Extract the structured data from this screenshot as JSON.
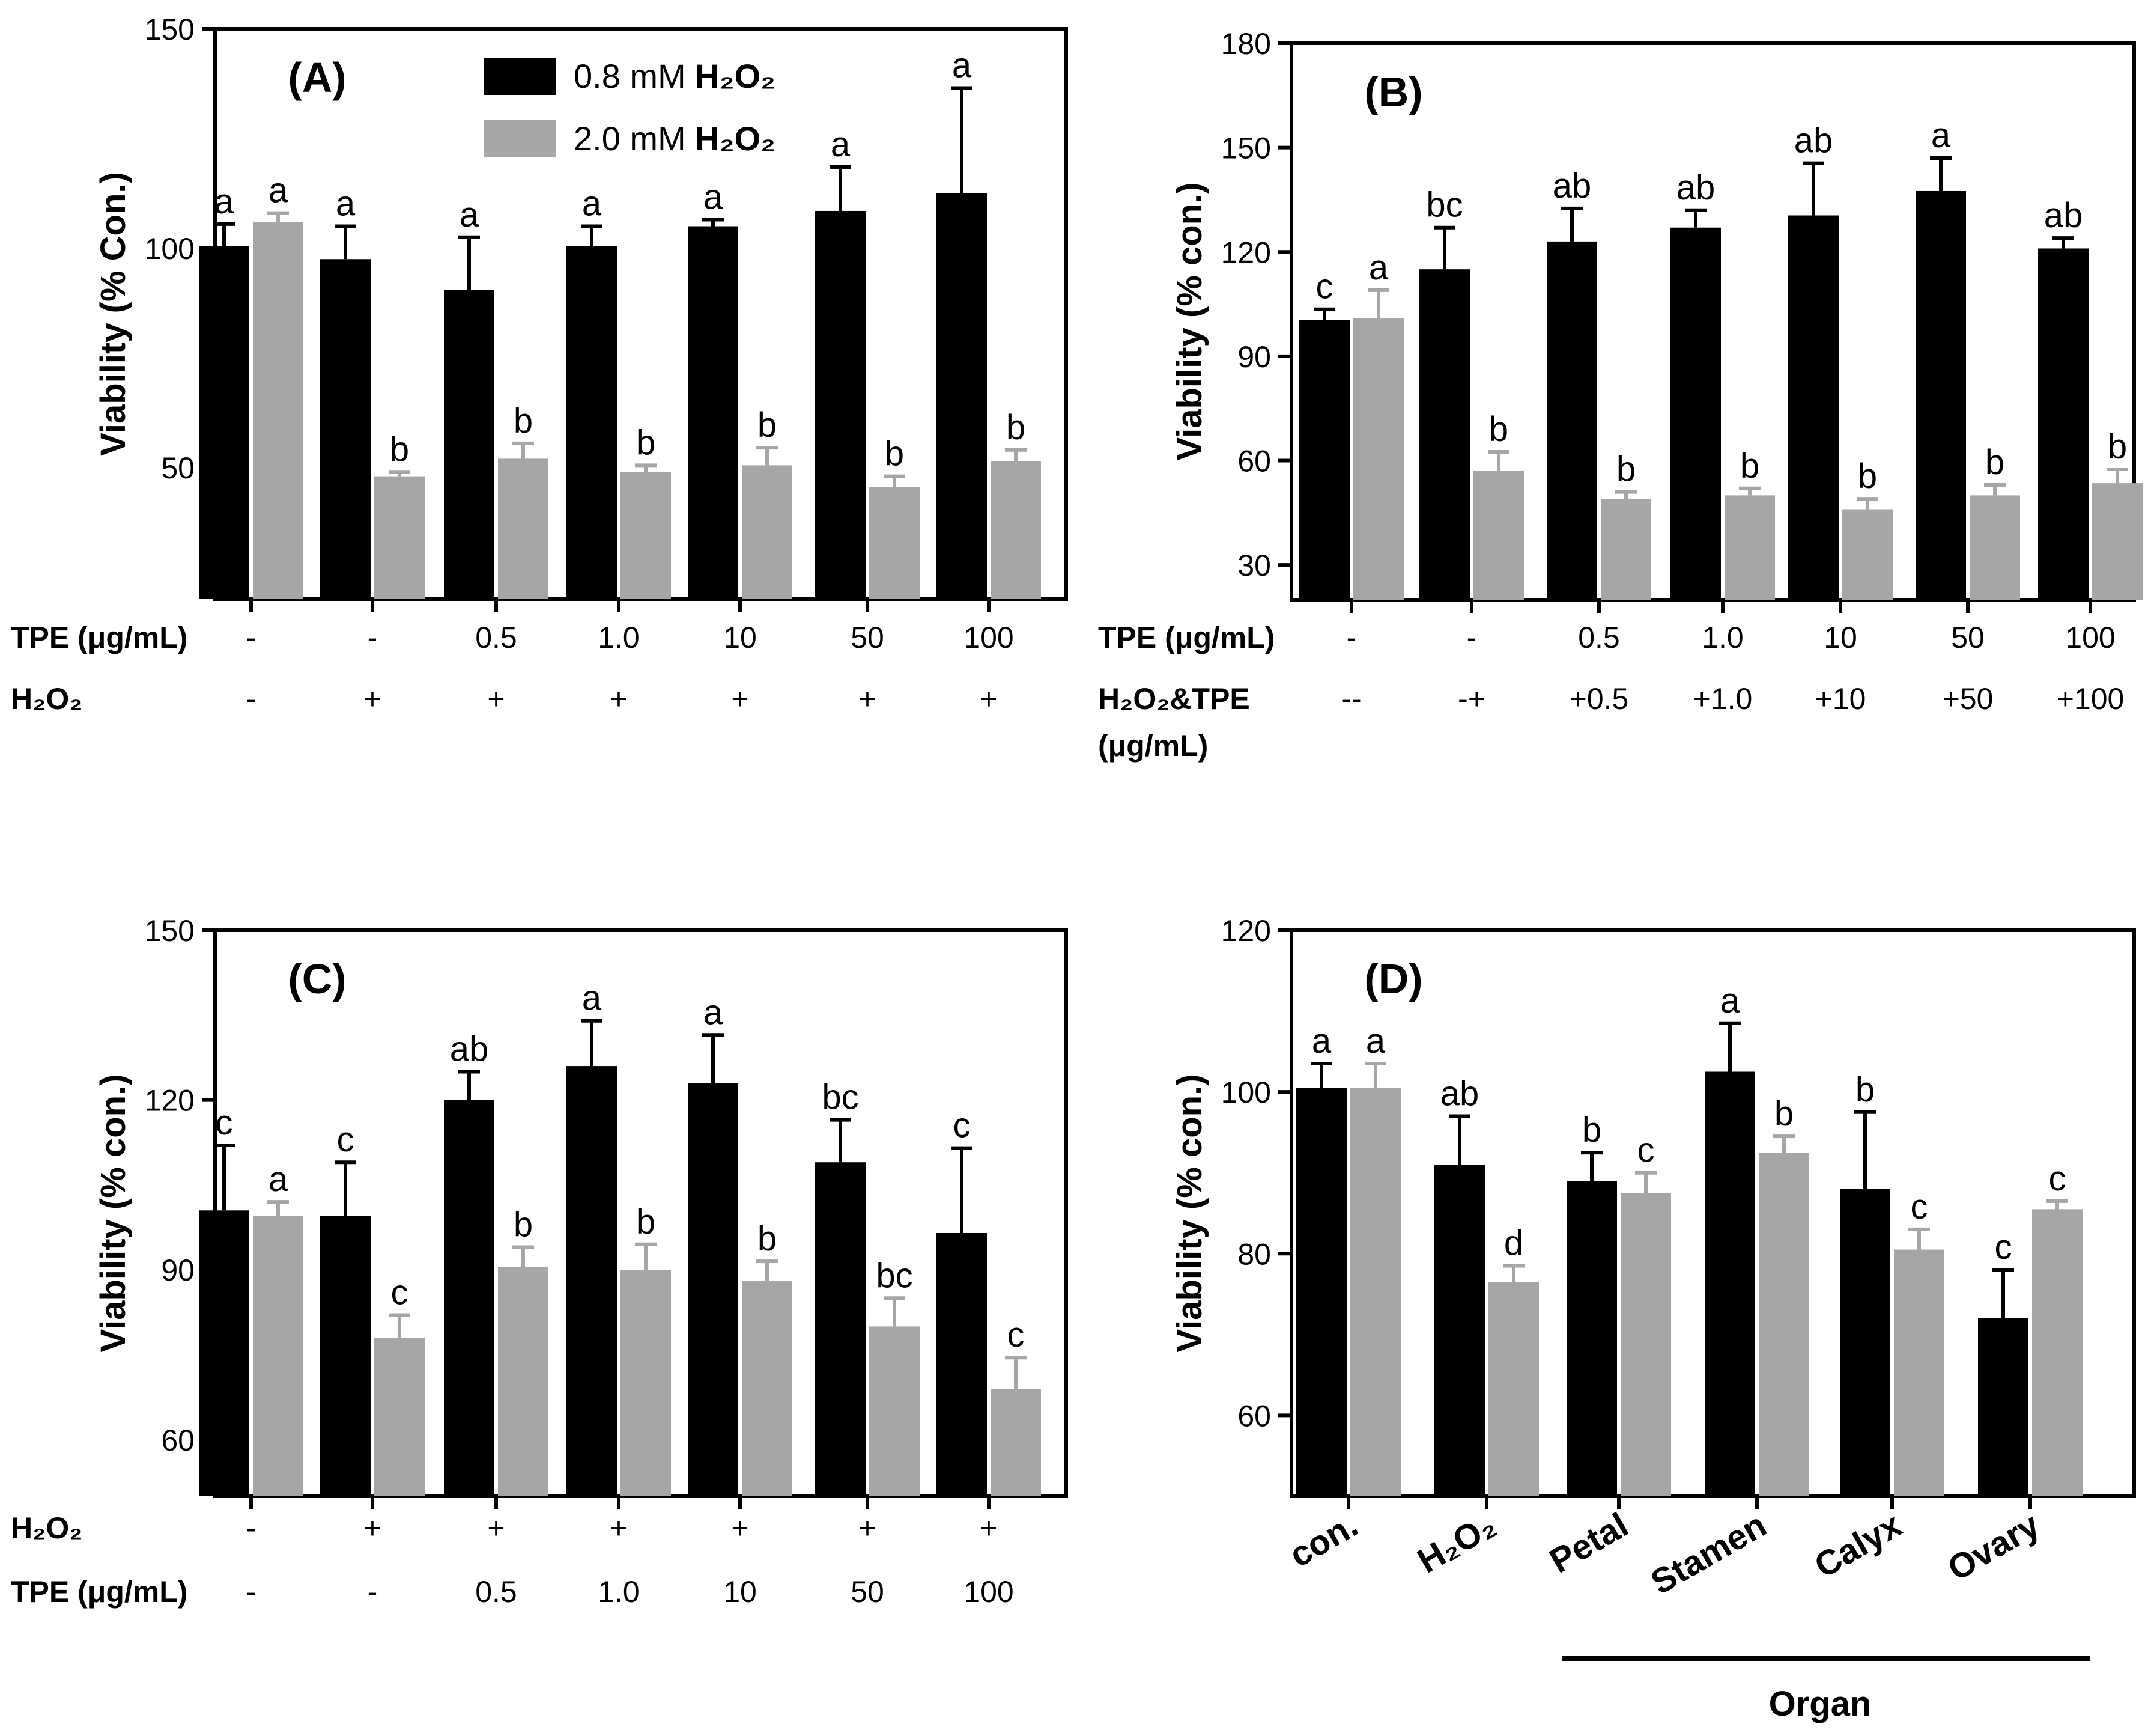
{
  "colors": {
    "series1": "#000000",
    "series2": "#a6a6a6",
    "axis": "#000000"
  },
  "chart_data": [
    {
      "type": "bar",
      "panel_label": "(A)",
      "ylabel": "Viability (% Con.)",
      "ylim": [
        20,
        150
      ],
      "yticks": [
        50,
        100,
        150
      ],
      "legend": [
        {
          "text": "0.8 mM ",
          "chem": "H₂O₂"
        },
        {
          "text": "2.0 mM ",
          "chem": "H₂O₂"
        }
      ],
      "series": [
        {
          "name": "0.8 mM H2O2",
          "values": [
            100.5,
            97.5,
            90.5,
            100.5,
            105,
            108.5,
            112.5
          ],
          "errors": [
            5,
            7.5,
            12,
            4.5,
            1.5,
            10,
            24
          ],
          "letters": [
            "a",
            "a",
            "a",
            "a",
            "a",
            "a",
            "a"
          ]
        },
        {
          "name": "2.0 mM H2O2",
          "values": [
            106,
            48,
            52,
            49,
            50.5,
            45.5,
            51.5
          ],
          "errors": [
            2,
            1,
            3.5,
            1.5,
            4,
            2.5,
            2.5
          ],
          "letters": [
            "a",
            "b",
            "b",
            "b",
            "b",
            "b",
            "b"
          ]
        }
      ],
      "row_labels": [
        "TPE (μg/mL)",
        "H₂O₂"
      ],
      "rows": [
        [
          "-",
          "-",
          "0.5",
          "1.0",
          "10",
          "50",
          "100"
        ],
        [
          "-",
          "+",
          "+",
          "+",
          "+",
          "+",
          "+"
        ]
      ]
    },
    {
      "type": "bar",
      "panel_label": "(B)",
      "ylabel": "Viability (% con.)",
      "ylim": [
        20,
        180
      ],
      "yticks": [
        30,
        60,
        90,
        120,
        150,
        180
      ],
      "series": [
        {
          "name": "series 1",
          "values": [
            100.5,
            115,
            123,
            127,
            130.5,
            137.5,
            121
          ],
          "errors": [
            3,
            12,
            9.5,
            5,
            15,
            9.5,
            3
          ],
          "letters": [
            "c",
            "bc",
            "ab",
            "ab",
            "ab",
            "a",
            "ab"
          ]
        },
        {
          "name": "series 2",
          "values": [
            101,
            57,
            49,
            50,
            46,
            50,
            53.5
          ],
          "errors": [
            8,
            5.5,
            2,
            2,
            3,
            3,
            4
          ],
          "letters": [
            "a",
            "b",
            "b",
            "b",
            "b",
            "b",
            "b"
          ]
        }
      ],
      "row_labels": [
        "TPE (μg/mL)",
        "H₂O₂&TPE",
        "(μg/mL)"
      ],
      "rows": [
        [
          "-",
          "-",
          "0.5",
          "1.0",
          "10",
          "50",
          "100"
        ],
        [
          "--",
          "-+",
          "+0.5",
          "+1.0",
          "+10",
          "+50",
          "+100"
        ]
      ]
    },
    {
      "type": "bar",
      "panel_label": "(C)",
      "ylabel": "Viability (% con.)",
      "ylim": [
        50,
        150
      ],
      "yticks": [
        60,
        90,
        120,
        150
      ],
      "series": [
        {
          "name": "series 1",
          "values": [
            100.5,
            99.5,
            120,
            126,
            123,
            109,
            96.5
          ],
          "errors": [
            11.5,
            9.5,
            5,
            8,
            8.5,
            7.5,
            15
          ],
          "letters": [
            "c",
            "c",
            "ab",
            "a",
            "a",
            "bc",
            "c"
          ]
        },
        {
          "name": "series 2",
          "values": [
            99.5,
            78,
            90.5,
            90,
            88,
            80,
            69
          ],
          "errors": [
            2.5,
            4,
            3.5,
            4.5,
            3.5,
            5,
            5.5
          ],
          "letters": [
            "a",
            "c",
            "b",
            "b",
            "b",
            "bc",
            "c"
          ]
        }
      ],
      "row_labels": [
        "H₂O₂",
        "TPE (μg/mL)"
      ],
      "rows": [
        [
          "-",
          "+",
          "+",
          "+",
          "+",
          "+",
          "+"
        ],
        [
          "-",
          "-",
          "0.5",
          "1.0",
          "10",
          "50",
          "100"
        ]
      ]
    },
    {
      "type": "bar",
      "panel_label": "(D)",
      "ylabel": "Viability (% con.)",
      "ylim": [
        50,
        120
      ],
      "yticks": [
        60,
        80,
        100,
        120
      ],
      "categories": [
        "con.",
        "H₂O₂",
        "Petal",
        "Stamen",
        "Calyx",
        "Ovary"
      ],
      "xlabel": "Organ",
      "series": [
        {
          "name": "series 1",
          "values": [
            100.5,
            91,
            89,
            102.5,
            88,
            72
          ],
          "errors": [
            3,
            6,
            3.5,
            6,
            9.5,
            6
          ],
          "letters": [
            "a",
            "ab",
            "b",
            "a",
            "b",
            "c"
          ]
        },
        {
          "name": "series 2",
          "values": [
            100.5,
            76.5,
            87.5,
            92.5,
            80.5,
            85.5
          ],
          "errors": [
            3,
            2,
            2.5,
            2,
            2.5,
            1
          ],
          "letters": [
            "a",
            "d",
            "c",
            "b",
            "c",
            "c"
          ]
        }
      ]
    }
  ]
}
